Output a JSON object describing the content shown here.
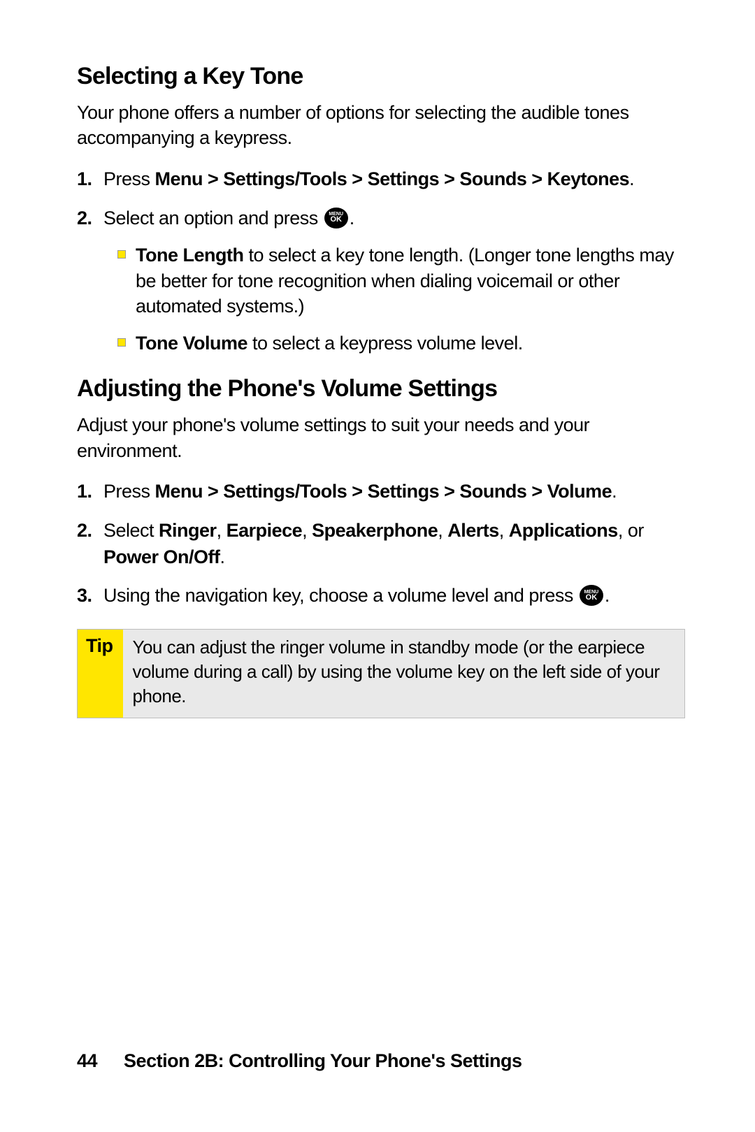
{
  "colors": {
    "page_bg": "#ffffff",
    "text": "#000000",
    "tip_label_bg": "#ffe600",
    "tip_body_bg": "#e9e9e9",
    "tip_border": "#bdbdbd",
    "bullet_fill": "#ffe600",
    "bullet_border": "#999999",
    "icon_bg": "#000000",
    "icon_text": "#ffffff"
  },
  "typography": {
    "heading_fontsize_pt": 25,
    "body_fontsize_pt": 20,
    "footer_fontsize_pt": 20,
    "font_family": "Myriad Pro / sans-serif"
  },
  "section1": {
    "heading": "Selecting a Key Tone",
    "intro": "Your phone offers a number of options for selecting the audible tones accompanying a keypress.",
    "step1_num": "1.",
    "step1_prefix": "Press ",
    "step1_bold": "Menu > Settings/Tools > Settings > Sounds > Keytones",
    "step1_suffix": ".",
    "step2_num": "2.",
    "step2_prefix": "Select an option and press ",
    "step2_suffix": ".",
    "sub1_bold": "Tone Length",
    "sub1_rest": " to select a key tone length. (Longer tone lengths may be better for tone recognition when dialing voicemail or other automated systems.)",
    "sub2_bold": "Tone Volume",
    "sub2_rest": " to select a keypress volume level."
  },
  "section2": {
    "heading": "Adjusting the Phone's Volume Settings",
    "intro": "Adjust your phone's volume settings to suit your needs and your environment.",
    "step1_num": "1.",
    "step1_prefix": "Press ",
    "step1_bold": "Menu > Settings/Tools > Settings > Sounds > Volume",
    "step1_suffix": ".",
    "step2_num": "2.",
    "step2_prefix": "Select ",
    "step2_b1": "Ringer",
    "step2_c1": ", ",
    "step2_b2": "Earpiece",
    "step2_c2": ", ",
    "step2_b3": "Speakerphone",
    "step2_c3": ", ",
    "step2_b4": "Alerts",
    "step2_c4": ", ",
    "step2_b5": "Applications",
    "step2_c5": ", or ",
    "step2_b6": "Power On/Off",
    "step2_suffix": ".",
    "step3_num": "3.",
    "step3_prefix": "Using the navigation key, choose a volume level and press ",
    "step3_suffix": "."
  },
  "tip": {
    "label": "Tip",
    "body": "You can adjust the ringer volume in standby mode (or the earpiece volume during a call) by using the volume key on the left side of your phone."
  },
  "icon": {
    "top": "MENU",
    "bottom": "OK"
  },
  "footer": {
    "page_number": "44",
    "section_label": "Section 2B: Controlling Your Phone's Settings"
  }
}
